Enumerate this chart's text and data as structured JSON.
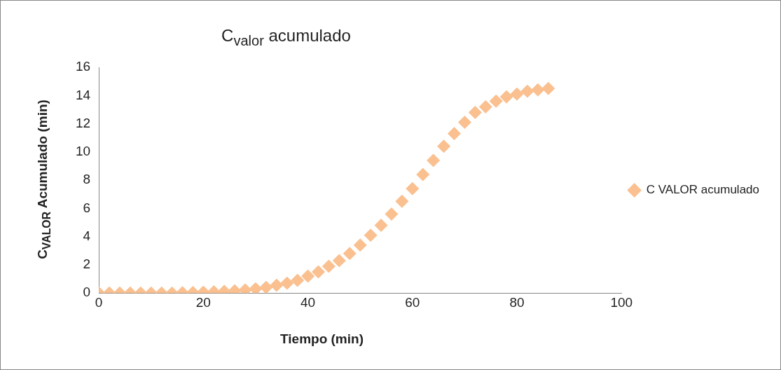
{
  "chart_data": {
    "type": "scatter",
    "title": "C$_{valor}$ acumulado",
    "xlabel": "Tiempo (min)",
    "ylabel": "C$_{VALOR}$ Acumulado (min)",
    "xlim": [
      0,
      100
    ],
    "xticks": [
      0,
      20,
      40,
      60,
      80,
      100
    ],
    "ylim": [
      0,
      16
    ],
    "yticks": [
      0,
      2,
      4,
      6,
      8,
      10,
      12,
      14,
      16
    ],
    "grid": false,
    "legend": "right",
    "marker": "diamond",
    "series": [
      {
        "name": "C VALOR acumulado",
        "color": "#fac090",
        "x": [
          0,
          2,
          4,
          6,
          8,
          10,
          12,
          14,
          16,
          18,
          20,
          22,
          24,
          26,
          28,
          30,
          32,
          34,
          36,
          38,
          40,
          42,
          44,
          46,
          48,
          50,
          52,
          54,
          56,
          58,
          60,
          62,
          64,
          66,
          68,
          70,
          72,
          74,
          76,
          78,
          80,
          82,
          84,
          86
        ],
        "values": [
          0,
          0,
          0,
          0,
          0,
          0,
          0,
          0,
          0.02,
          0.04,
          0.06,
          0.09,
          0.12,
          0.16,
          0.22,
          0.3,
          0.4,
          0.55,
          0.7,
          0.9,
          1.2,
          1.5,
          1.9,
          2.3,
          2.8,
          3.4,
          4.1,
          4.8,
          5.6,
          6.5,
          7.4,
          8.4,
          9.4,
          10.4,
          11.3,
          12.1,
          12.8,
          13.2,
          13.6,
          13.9,
          14.1,
          14.3,
          14.4,
          14.5
        ]
      }
    ]
  }
}
